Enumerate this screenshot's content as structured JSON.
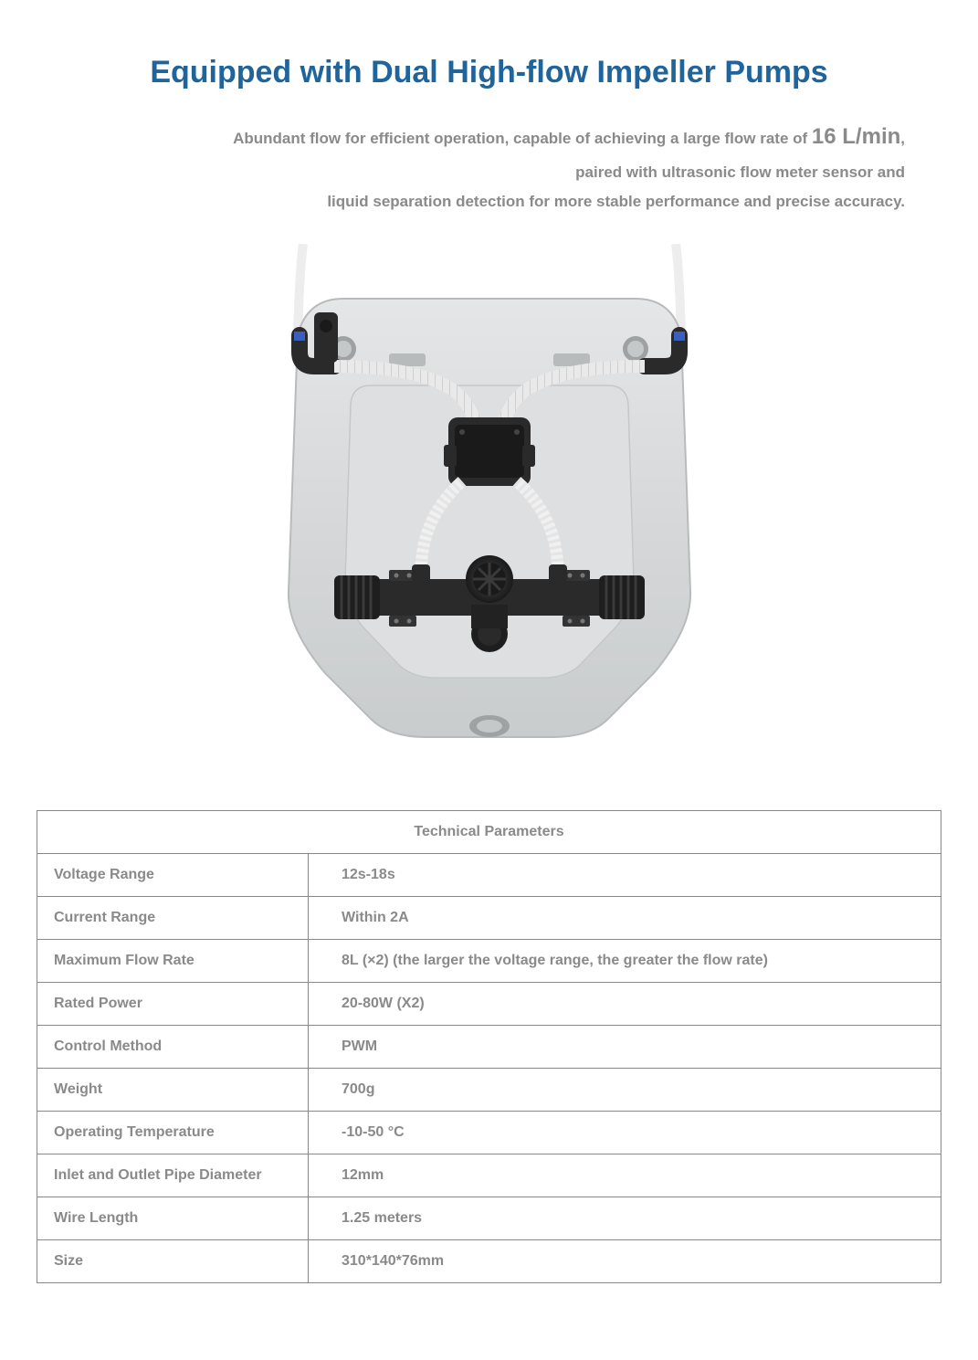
{
  "colors": {
    "heading": "#1f649b",
    "body_text": "#8a8a8a",
    "border": "#888888",
    "background": "#ffffff"
  },
  "heading": "Equipped with Dual High-flow Impeller Pumps",
  "description": {
    "line1_prefix": "Abundant flow for efficient operation, capable of achieving a large flow rate of ",
    "line1_big": "16 L/min",
    "line1_suffix": ",",
    "line2": "paired with ultrasonic flow meter sensor and",
    "line3": "liquid separation detection for more stable performance and precise accuracy."
  },
  "image": {
    "alt": "Top view of pump tank assembly with dual impeller pumps, hoses and connectors",
    "tank_color": "#d6d8d9",
    "tank_shadow": "#b8bbbc",
    "pump_color": "#2a2a2a",
    "hose_color": "#f4f4f4",
    "connector_accent": "#3a5fbf",
    "vent_color": "#9ea2a4"
  },
  "table": {
    "header": "Technical Parameters",
    "rows": [
      {
        "label": "Voltage Range",
        "value": "12s-18s"
      },
      {
        "label": "Current Range",
        "value": "Within 2A"
      },
      {
        "label": "Maximum Flow Rate",
        "value": "8L (×2) (the larger the voltage range, the greater the flow rate)"
      },
      {
        "label": "Rated Power",
        "value": "20-80W (X2)"
      },
      {
        "label": "Control Method",
        "value": "PWM"
      },
      {
        "label": "Weight",
        "value": "700g"
      },
      {
        "label": "Operating Temperature",
        "value": "-10-50 °C"
      },
      {
        "label": "Inlet and Outlet Pipe Diameter",
        "value": "12mm"
      },
      {
        "label": "Wire Length",
        "value": "1.25 meters"
      },
      {
        "label": "Size",
        "value": "310*140*76mm"
      }
    ]
  }
}
